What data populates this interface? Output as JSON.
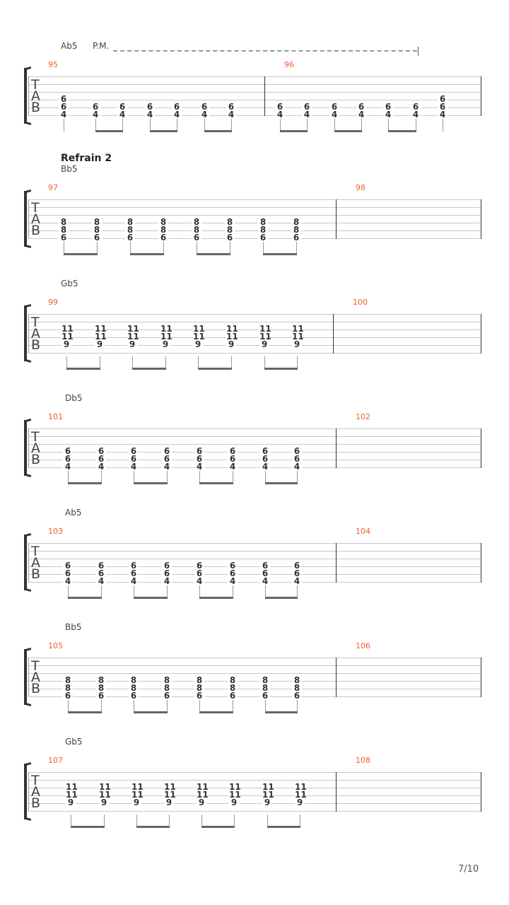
{
  "page_number": "7/10",
  "colors": {
    "measure_number": "#f06030",
    "staff_line": "#c8c8c8"
  },
  "tab_clef": [
    "T",
    "A",
    "B"
  ],
  "systems": [
    {
      "section": "",
      "chord": "Ab5",
      "palm_mute": "P.M.",
      "measures": [
        {
          "number": "95",
          "notes": [
            [
              "",
              "",
              "",
              "6",
              "6",
              "4"
            ],
            [
              "",
              "",
              "",
              "",
              "6",
              "4"
            ],
            [
              "",
              "",
              "",
              "",
              "6",
              "4"
            ],
            [
              "",
              "",
              "",
              "",
              "6",
              "4"
            ],
            [
              "",
              "",
              "",
              "",
              "6",
              "4"
            ],
            [
              "",
              "",
              "",
              "",
              "6",
              "4"
            ],
            [
              "",
              "",
              "",
              "",
              "6",
              "4"
            ]
          ],
          "beams": [
            [
              0
            ],
            [
              1,
              2
            ],
            [
              3,
              4
            ],
            [
              5,
              6
            ]
          ]
        },
        {
          "number": "96",
          "notes": [
            [
              "",
              "",
              "",
              "",
              "6",
              "4"
            ],
            [
              "",
              "",
              "",
              "",
              "6",
              "4"
            ],
            [
              "",
              "",
              "",
              "",
              "6",
              "4"
            ],
            [
              "",
              "",
              "",
              "",
              "6",
              "4"
            ],
            [
              "",
              "",
              "",
              "",
              "6",
              "4"
            ],
            [
              "",
              "",
              "",
              "",
              "6",
              "4"
            ],
            [
              "",
              "",
              "",
              "6",
              "6",
              "4"
            ]
          ],
          "beams": [
            [
              0,
              1
            ],
            [
              2,
              3
            ],
            [
              4,
              5
            ],
            [
              6
            ]
          ]
        }
      ]
    },
    {
      "section": "Refrain 2",
      "chord": "Bb5",
      "palm_mute": "",
      "measures": [
        {
          "number": "97",
          "notes": [
            [
              "",
              "",
              "",
              "8",
              "8",
              "6"
            ],
            [
              "",
              "",
              "",
              "8",
              "8",
              "6"
            ],
            [
              "",
              "",
              "",
              "8",
              "8",
              "6"
            ],
            [
              "",
              "",
              "",
              "8",
              "8",
              "6"
            ],
            [
              "",
              "",
              "",
              "8",
              "8",
              "6"
            ],
            [
              "",
              "",
              "",
              "8",
              "8",
              "6"
            ],
            [
              "",
              "",
              "",
              "8",
              "8",
              "6"
            ],
            [
              "",
              "",
              "",
              "8",
              "8",
              "6"
            ]
          ],
          "beams": [
            [
              0,
              1
            ],
            [
              2,
              3
            ],
            [
              4,
              5
            ],
            [
              6,
              7
            ]
          ]
        },
        {
          "number": "98",
          "notes": [],
          "beams": []
        }
      ]
    },
    {
      "section": "",
      "chord": "Gb5",
      "palm_mute": "",
      "measures": [
        {
          "number": "99",
          "notes": [
            [
              "",
              "",
              "11",
              "11",
              "9",
              ""
            ],
            [
              "",
              "",
              "11",
              "11",
              "9",
              ""
            ],
            [
              "",
              "",
              "11",
              "11",
              "9",
              ""
            ],
            [
              "",
              "",
              "11",
              "11",
              "9",
              ""
            ],
            [
              "",
              "",
              "11",
              "11",
              "9",
              ""
            ],
            [
              "",
              "",
              "11",
              "11",
              "9",
              ""
            ],
            [
              "",
              "",
              "11",
              "11",
              "9",
              ""
            ],
            [
              "",
              "",
              "11",
              "11",
              "9",
              ""
            ]
          ],
          "beams": [
            [
              0,
              1
            ],
            [
              2,
              3
            ],
            [
              4,
              5
            ],
            [
              6,
              7
            ]
          ]
        },
        {
          "number": "100",
          "notes": [],
          "beams": []
        }
      ]
    },
    {
      "section": "",
      "chord": "Db5",
      "palm_mute": "",
      "measures": [
        {
          "number": "101",
          "notes": [
            [
              "",
              "",
              "",
              "6",
              "6",
              "4"
            ],
            [
              "",
              "",
              "",
              "6",
              "6",
              "4"
            ],
            [
              "",
              "",
              "",
              "6",
              "6",
              "4"
            ],
            [
              "",
              "",
              "",
              "6",
              "6",
              "4"
            ],
            [
              "",
              "",
              "",
              "6",
              "6",
              "4"
            ],
            [
              "",
              "",
              "",
              "6",
              "6",
              "4"
            ],
            [
              "",
              "",
              "",
              "6",
              "6",
              "4"
            ],
            [
              "",
              "",
              "",
              "6",
              "6",
              "4"
            ]
          ],
          "beams": [
            [
              0,
              1
            ],
            [
              2,
              3
            ],
            [
              4,
              5
            ],
            [
              6,
              7
            ]
          ]
        },
        {
          "number": "102",
          "notes": [],
          "beams": []
        }
      ]
    },
    {
      "section": "",
      "chord": "Ab5",
      "palm_mute": "",
      "measures": [
        {
          "number": "103",
          "notes": [
            [
              "",
              "",
              "",
              "",
              "6",
              "6",
              "4"
            ],
            [
              "",
              "",
              "",
              "",
              "6",
              "6",
              "4"
            ],
            [
              "",
              "",
              "",
              "",
              "6",
              "6",
              "4"
            ],
            [
              "",
              "",
              "",
              "",
              "6",
              "6",
              "4"
            ],
            [
              "",
              "",
              "",
              "",
              "6",
              "6",
              "4"
            ],
            [
              "",
              "",
              "",
              "",
              "6",
              "6",
              "4"
            ],
            [
              "",
              "",
              "",
              "",
              "6",
              "6",
              "4"
            ],
            [
              "",
              "",
              "",
              "",
              "6",
              "6",
              "4"
            ]
          ],
          "beams": [
            [
              0,
              1
            ],
            [
              2,
              3
            ],
            [
              4,
              5
            ],
            [
              6,
              7
            ]
          ]
        },
        {
          "number": "104",
          "notes": [],
          "beams": []
        }
      ]
    },
    {
      "section": "",
      "chord": "Bb5",
      "palm_mute": "",
      "measures": [
        {
          "number": "105",
          "notes": [
            [
              "",
              "",
              "",
              "",
              "8",
              "8",
              "6"
            ],
            [
              "",
              "",
              "",
              "",
              "8",
              "8",
              "6"
            ],
            [
              "",
              "",
              "",
              "",
              "8",
              "8",
              "6"
            ],
            [
              "",
              "",
              "",
              "",
              "8",
              "8",
              "6"
            ],
            [
              "",
              "",
              "",
              "",
              "8",
              "8",
              "6"
            ],
            [
              "",
              "",
              "",
              "",
              "8",
              "8",
              "6"
            ],
            [
              "",
              "",
              "",
              "",
              "8",
              "8",
              "6"
            ],
            [
              "",
              "",
              "",
              "",
              "8",
              "8",
              "6"
            ]
          ],
          "beams": [
            [
              0,
              1
            ],
            [
              2,
              3
            ],
            [
              4,
              5
            ],
            [
              6,
              7
            ]
          ]
        },
        {
          "number": "106",
          "notes": [],
          "beams": []
        }
      ]
    },
    {
      "section": "",
      "chord": "Gb5",
      "palm_mute": "",
      "measures": [
        {
          "number": "107",
          "notes": [
            [
              "",
              "",
              "11",
              "11",
              "9",
              ""
            ],
            [
              "",
              "",
              "11",
              "11",
              "9",
              ""
            ],
            [
              "",
              "",
              "11",
              "11",
              "9",
              ""
            ],
            [
              "",
              "",
              "11",
              "11",
              "9",
              ""
            ],
            [
              "",
              "",
              "11",
              "11",
              "9",
              ""
            ],
            [
              "",
              "",
              "11",
              "11",
              "9",
              ""
            ],
            [
              "",
              "",
              "11",
              "11",
              "9",
              ""
            ],
            [
              "",
              "",
              "11",
              "11",
              "9",
              ""
            ]
          ],
          "beams": [
            [
              0,
              1
            ],
            [
              2,
              3
            ],
            [
              4,
              5
            ],
            [
              6,
              7
            ]
          ]
        },
        {
          "number": "108",
          "notes": [],
          "beams": []
        }
      ]
    }
  ]
}
